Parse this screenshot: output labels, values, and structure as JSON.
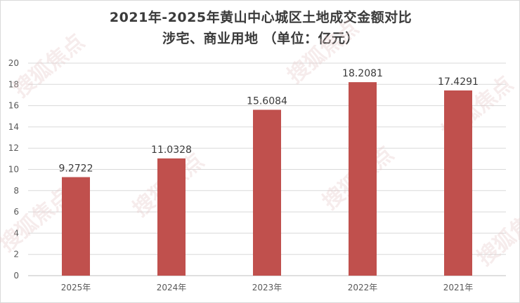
{
  "chart_data": {
    "type": "bar",
    "title": "2021年-2025年黄山中心城区土地成交金额对比",
    "subtitle": "涉宅、商业用地 （单位：亿元）",
    "categories": [
      "2025年",
      "2024年",
      "2023年",
      "2022年",
      "2021年"
    ],
    "values": [
      9.2722,
      11.0328,
      15.6084,
      18.2081,
      17.4291
    ],
    "value_labels": [
      "9.2722",
      "11.0328",
      "15.6084",
      "18.2081",
      "17.4291"
    ],
    "yticks": [
      "0",
      "2",
      "4",
      "6",
      "8",
      "10",
      "12",
      "14",
      "16",
      "18",
      "20"
    ],
    "ylim": [
      0,
      20
    ],
    "grid": true,
    "legend": "none",
    "bar_color": "#c0504d"
  },
  "watermark": "搜狐焦点"
}
